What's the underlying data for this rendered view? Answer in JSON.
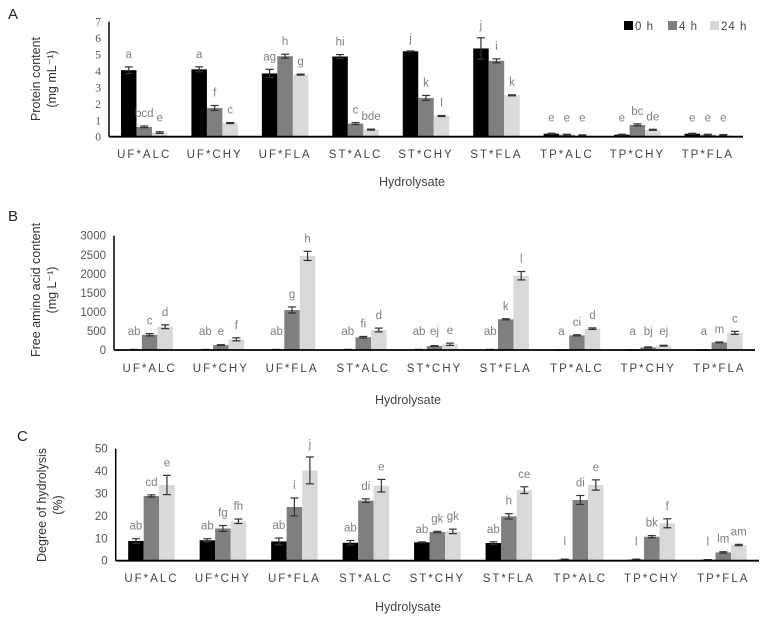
{
  "legend": [
    {
      "label": "0 h",
      "color": "#000000"
    },
    {
      "label": "4 h",
      "color": "#7f7f7f"
    },
    {
      "label": "24 h",
      "color": "#d9d9d9"
    }
  ],
  "chart_data": [
    {
      "panel": "A",
      "type": "bar",
      "xlabel": "Hydrolysate",
      "ylabel": [
        "Protein content",
        "(mg mL⁻¹)"
      ],
      "ylim": [
        0,
        7
      ],
      "yticks": [
        0,
        1,
        2,
        3,
        4,
        5,
        6,
        7
      ],
      "categories": [
        "UF*ALC",
        "UF*CHY",
        "UF*FLA",
        "ST*ALC",
        "ST*CHY",
        "ST*FLA",
        "TP*ALC",
        "TP*CHY",
        "TP*FLA"
      ],
      "legend_position": "top-right",
      "series": [
        {
          "name": "0 h",
          "values": [
            4.05,
            4.1,
            3.85,
            4.88,
            5.2,
            5.37,
            0.18,
            0.12,
            0.18
          ],
          "errors": [
            0.2,
            0.15,
            0.25,
            0.12,
            0.02,
            0.65,
            0.03,
            0.03,
            0.03
          ],
          "letters": [
            "a",
            "a",
            "ag",
            "hi",
            "j",
            "j",
            "e",
            "e",
            "e"
          ]
        },
        {
          "name": "4 h",
          "values": [
            0.6,
            1.75,
            4.9,
            0.8,
            2.36,
            4.62,
            0.12,
            0.72,
            0.12
          ],
          "errors": [
            0.05,
            0.15,
            0.12,
            0.06,
            0.15,
            0.12,
            0.03,
            0.06,
            0.03
          ],
          "letters": [
            "bcd",
            "f",
            "h",
            "c",
            "k",
            "i",
            "e",
            "bc",
            "e"
          ]
        },
        {
          "name": "24 h",
          "values": [
            0.25,
            0.83,
            3.78,
            0.43,
            1.26,
            2.52,
            0.08,
            0.42,
            0.1
          ],
          "errors": [
            0.05,
            0.03,
            0.03,
            0.03,
            0.03,
            0.03,
            0.03,
            0.03,
            0.03
          ],
          "letters": [
            "e",
            "c",
            "g",
            "bde",
            "l",
            "k",
            "e",
            "de",
            "e"
          ]
        }
      ]
    },
    {
      "panel": "B",
      "type": "bar",
      "xlabel": "Hydrolysate",
      "ylabel": [
        "Free amino acid content",
        "(mg L⁻¹)"
      ],
      "ylim": [
        0,
        3000
      ],
      "yticks": [
        0,
        500,
        1000,
        1500,
        2000,
        2500,
        3000
      ],
      "categories": [
        "UF*ALC",
        "UF*CHY",
        "UF*FLA",
        "ST*ALC",
        "ST*CHY",
        "ST*FLA",
        "TP*ALC",
        "TP*CHY",
        "TP*FLA"
      ],
      "series": [
        {
          "name": "0 h",
          "values": [
            10,
            10,
            10,
            10,
            10,
            10,
            0,
            0,
            0
          ],
          "errors": [
            5,
            5,
            5,
            5,
            5,
            5,
            0,
            0,
            0
          ],
          "letters": [
            "ab",
            "ab",
            "ab",
            "ab",
            "ab",
            "ab",
            "a",
            "a",
            "a"
          ]
        },
        {
          "name": "4 h",
          "values": [
            400,
            130,
            1050,
            335,
            105,
            805,
            385,
            70,
            200
          ],
          "errors": [
            30,
            10,
            80,
            20,
            10,
            15,
            15,
            10,
            10
          ],
          "letters": [
            "c",
            "e",
            "g",
            "fi",
            "ej",
            "k",
            "ci",
            "bj",
            "m"
          ]
        },
        {
          "name": "24 h",
          "values": [
            610,
            280,
            2470,
            525,
            150,
            1950,
            560,
            113,
            450
          ],
          "errors": [
            50,
            40,
            120,
            50,
            30,
            110,
            20,
            10,
            40
          ],
          "letters": [
            "d",
            "f",
            "h",
            "d",
            "e",
            "l",
            "d",
            "ej",
            "c"
          ]
        }
      ]
    },
    {
      "panel": "C",
      "type": "bar",
      "xlabel": "Hydrolysate",
      "ylabel": [
        "Degree of hydrolysis",
        "(%)"
      ],
      "ylim": [
        0,
        50
      ],
      "yticks": [
        0,
        10,
        20,
        30,
        40,
        50
      ],
      "categories": [
        "UF*ALC",
        "UF*CHY",
        "UF*FLA",
        "ST*ALC",
        "ST*CHY",
        "ST*FLA",
        "TP*ALC",
        "TP*CHY",
        "TP*FLA"
      ],
      "series": [
        {
          "name": "0 h",
          "values": [
            8.8,
            9.1,
            8.6,
            8.0,
            8.2,
            7.9,
            0.5,
            0.5,
            0.4
          ],
          "errors": [
            1,
            0.7,
            1.5,
            1,
            0.2,
            0.5,
            0.2,
            0.2,
            0.1
          ],
          "letters": [
            "ab",
            "ab",
            "ab",
            "ab",
            "ab",
            "ab",
            "l",
            "l",
            "l"
          ]
        },
        {
          "name": "4 h",
          "values": [
            28.9,
            14.4,
            24.0,
            26.8,
            12.8,
            19.8,
            27.1,
            10.7,
            3.7
          ],
          "errors": [
            0.5,
            1.3,
            4,
            0.8,
            0.3,
            1.2,
            2,
            0.5,
            0.3
          ],
          "letters": [
            "cd",
            "fg",
            "i",
            "di",
            "gk",
            "h",
            "di",
            "bk",
            "lm"
          ]
        },
        {
          "name": "24 h",
          "values": [
            33.8,
            17.6,
            40.3,
            33.5,
            13.1,
            31.5,
            33.8,
            16.7,
            7.0
          ],
          "errors": [
            4.3,
            1,
            6,
            2.8,
            1,
            1.5,
            2.3,
            2,
            0.3
          ],
          "letters": [
            "e",
            "fh",
            "j",
            "e",
            "gk",
            "ce",
            "e",
            "f",
            "am"
          ]
        }
      ]
    }
  ]
}
